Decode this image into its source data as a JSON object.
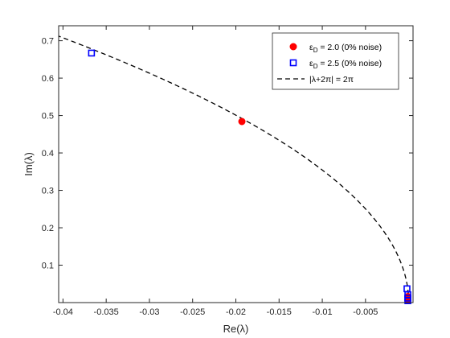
{
  "chart_data": {
    "type": "scatter",
    "title": "",
    "xlabel": "Re(λ)",
    "ylabel": "Im(λ)",
    "xlim": [
      -0.0405,
      0.0005
    ],
    "ylim": [
      0.0,
      0.74
    ],
    "xticks": [
      -0.04,
      -0.035,
      -0.03,
      -0.025,
      -0.02,
      -0.015,
      -0.01,
      -0.005
    ],
    "xtick_labels": [
      "-0.04",
      "-0.035",
      "-0.03",
      "-0.025",
      "-0.02",
      "-0.015",
      "-0.01",
      "-0.005"
    ],
    "yticks": [
      0.1,
      0.2,
      0.3,
      0.4,
      0.5,
      0.6,
      0.7
    ],
    "ytick_labels": [
      "0.1",
      "0.2",
      "0.3",
      "0.4",
      "0.5",
      "0.6",
      "0.7"
    ],
    "grid": false,
    "legend_position": "top-right",
    "series": [
      {
        "name": "εD = 2.0 (0% noise)",
        "legend_main": "ε",
        "legend_sub": "D",
        "legend_rest": " = 2.0 (0% noise)",
        "marker": "circle",
        "color": "#ff0000",
        "points": [
          [
            -0.0193,
            0.484
          ],
          [
            -0.0001,
            0.016
          ],
          [
            -0.0001,
            0.006
          ]
        ]
      },
      {
        "name": "εD = 2.5 (0% noise)",
        "legend_main": "ε",
        "legend_sub": "D",
        "legend_rest": " = 2.5 (0% noise)",
        "marker": "square",
        "color": "#0000ff",
        "points": [
          [
            -0.0367,
            0.667
          ],
          [
            -0.0002,
            0.037
          ],
          [
            -0.0001,
            0.021
          ],
          [
            -0.0001,
            0.012
          ],
          [
            -0.0001,
            0.005
          ]
        ]
      },
      {
        "name": "|λ+2π| = 2π",
        "legend_label": "|λ+2π| = 2π",
        "marker": "dashed-line",
        "color": "#000000",
        "curve": "circle |λ+2π| = 2π"
      }
    ]
  }
}
